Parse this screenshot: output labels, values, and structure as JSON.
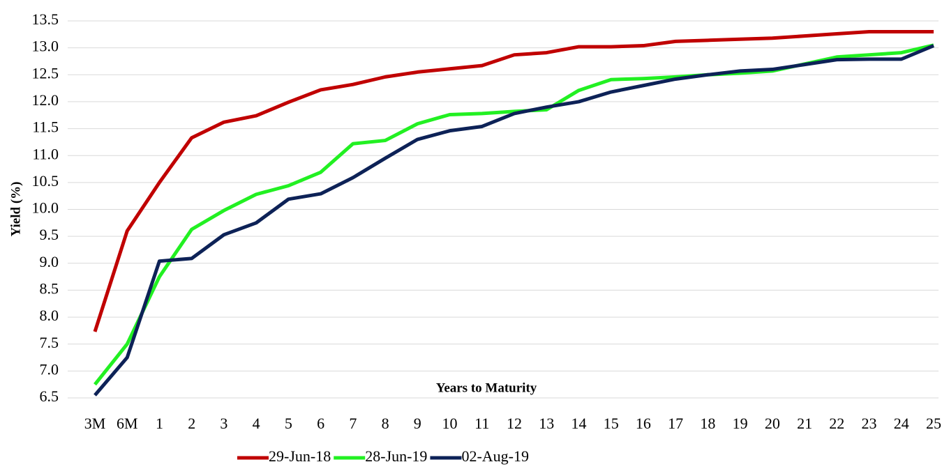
{
  "chart_data": {
    "type": "line",
    "x_label": "Years to Maturity",
    "y_label": "Yield (%)",
    "categories": [
      "3M",
      "6M",
      "1",
      "2",
      "3",
      "4",
      "5",
      "6",
      "7",
      "8",
      "9",
      "10",
      "11",
      "12",
      "13",
      "14",
      "15",
      "16",
      "17",
      "18",
      "19",
      "20",
      "21",
      "22",
      "23",
      "24",
      "25"
    ],
    "series": [
      {
        "name": "29-Jun-18",
        "color": "#c00000",
        "values": [
          7.73,
          9.6,
          10.5,
          11.33,
          11.62,
          11.74,
          11.99,
          12.22,
          12.32,
          12.46,
          12.55,
          12.61,
          12.67,
          12.87,
          12.91,
          13.02,
          13.02,
          13.04,
          13.12,
          13.14,
          13.16,
          13.18,
          13.22,
          13.26,
          13.3,
          13.3,
          13.3
        ]
      },
      {
        "name": "28-Jun-19",
        "color": "#22f022",
        "values": [
          6.75,
          7.5,
          8.75,
          9.63,
          9.98,
          10.28,
          10.44,
          10.69,
          11.22,
          11.28,
          11.59,
          11.76,
          11.78,
          11.82,
          11.85,
          12.21,
          12.41,
          12.43,
          12.46,
          12.5,
          12.53,
          12.57,
          12.7,
          12.83,
          12.87,
          12.91,
          13.05
        ]
      },
      {
        "name": "02-Aug-19",
        "color": "#0d2257",
        "values": [
          6.55,
          7.25,
          9.04,
          9.09,
          9.53,
          9.75,
          10.19,
          10.29,
          10.59,
          10.95,
          11.3,
          11.46,
          11.54,
          11.78,
          11.9,
          12.0,
          12.18,
          12.3,
          12.42,
          12.5,
          12.57,
          12.6,
          12.69,
          12.78,
          12.79,
          12.79,
          13.04
        ]
      }
    ],
    "ylim": [
      6.5,
      13.5
    ],
    "yticks": [
      6.5,
      {
        "value": 7,
        "label": "7.0"
      },
      7.5,
      {
        "value": 8,
        "label": "8.0"
      },
      8.5,
      {
        "value": 9,
        "label": "9.0"
      },
      9.5,
      {
        "value": 10,
        "label": "10.0"
      },
      10.5,
      {
        "value": 11,
        "label": "11.0"
      },
      11.5,
      {
        "value": 12,
        "label": "12.0"
      },
      12.5,
      {
        "value": 13,
        "label": "13.0"
      },
      13.5
    ],
    "grid": true,
    "legend": "bottom"
  }
}
